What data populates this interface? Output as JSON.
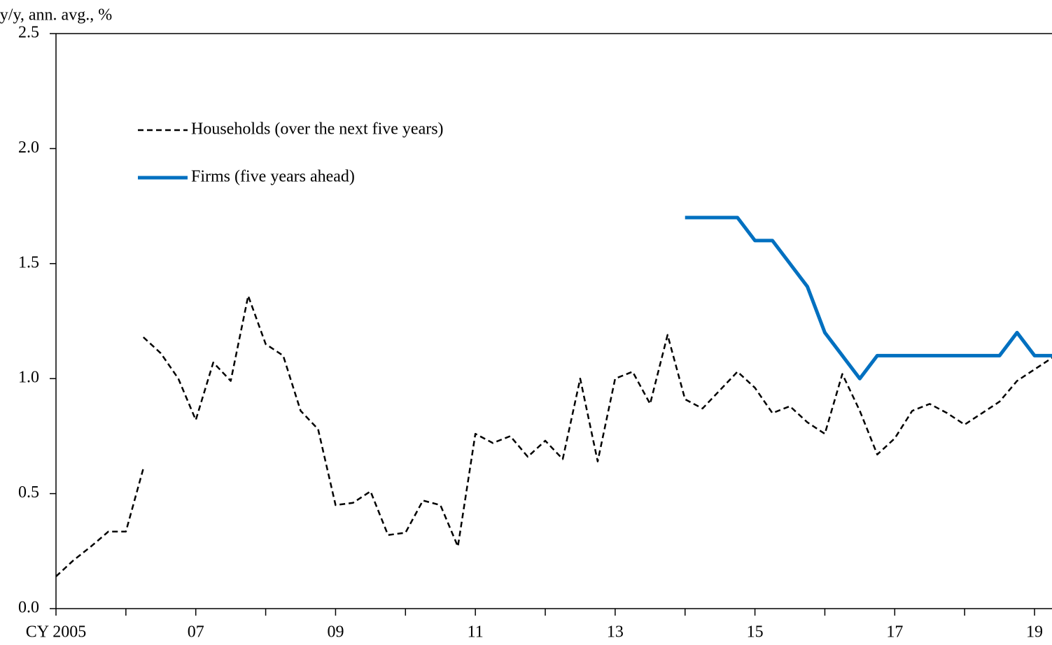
{
  "chart_data": {
    "type": "line",
    "y_axis_label": "y/y, ann. avg., %",
    "xlim": [
      2005,
      2019.25
    ],
    "xticks": [
      {
        "value": 2005,
        "label": "CY 2005"
      },
      {
        "value": 2006,
        "label": null
      },
      {
        "value": 2007,
        "label": "07"
      },
      {
        "value": 2008,
        "label": null
      },
      {
        "value": 2009,
        "label": "09"
      },
      {
        "value": 2010,
        "label": null
      },
      {
        "value": 2011,
        "label": "11"
      },
      {
        "value": 2012,
        "label": null
      },
      {
        "value": 2013,
        "label": "13"
      },
      {
        "value": 2014,
        "label": null
      },
      {
        "value": 2015,
        "label": "15"
      },
      {
        "value": 2016,
        "label": null
      },
      {
        "value": 2017,
        "label": "17"
      },
      {
        "value": 2018,
        "label": null
      },
      {
        "value": 2019,
        "label": "19"
      }
    ],
    "ylim": [
      0,
      2.5
    ],
    "yticks": [
      {
        "value": 0,
        "label": "0.0"
      },
      {
        "value": 0.5,
        "label": "0.5"
      },
      {
        "value": 1,
        "label": "1.0"
      },
      {
        "value": 1.5,
        "label": "1.5"
      },
      {
        "value": 2,
        "label": "2.0"
      },
      {
        "value": 2.5,
        "label": "2.5"
      }
    ],
    "grid": false,
    "series": [
      {
        "name": "Households (over the next five years)",
        "color": "#000000",
        "dash": true,
        "line_width": 2.5,
        "x": [
          2005,
          2005.25,
          2005.5,
          2005.75,
          2006,
          2006.25,
          2006.25,
          2006.25,
          2006.5,
          2006.75,
          2007,
          2007.25,
          2007.5,
          2007.75,
          2008,
          2008.25,
          2008.5,
          2008.75,
          2009,
          2009.25,
          2009.5,
          2009.75,
          2010,
          2010.25,
          2010.5,
          2010.75,
          2011,
          2011.25,
          2011.5,
          2011.75,
          2012,
          2012.25,
          2012.5,
          2012.75,
          2013,
          2013.25,
          2013.5,
          2013.75,
          2014,
          2014.25,
          2014.5,
          2014.75,
          2015,
          2015.25,
          2015.5,
          2015.75,
          2016,
          2016.25,
          2016.5,
          2016.75,
          2017,
          2017.25,
          2017.5,
          2017.75,
          2018,
          2018.25,
          2018.5,
          2018.75,
          2019,
          2019.25
        ],
        "values": [
          0.14,
          0.21,
          0.27,
          0.335,
          0.335,
          0.61,
          null,
          1.18,
          1.11,
          1.0,
          0.82,
          1.07,
          0.99,
          1.36,
          1.15,
          1.1,
          0.86,
          0.78,
          0.45,
          0.46,
          0.51,
          0.32,
          0.33,
          0.47,
          0.45,
          0.27,
          0.76,
          0.72,
          0.75,
          0.66,
          0.73,
          0.65,
          1.0,
          0.64,
          1.0,
          1.03,
          0.89,
          1.19,
          0.91,
          0.87,
          0.95,
          1.03,
          0.96,
          0.85,
          0.88,
          0.81,
          0.76,
          1.02,
          0.86,
          0.67,
          0.74,
          0.86,
          0.89,
          0.85,
          0.8,
          0.85,
          0.9,
          0.99,
          1.04,
          1.09
        ]
      },
      {
        "name": "Firms (five years ahead)",
        "color": "#0070c0",
        "dash": false,
        "line_width": 5,
        "x": [
          2014,
          2014.25,
          2014.5,
          2014.75,
          2015,
          2015.25,
          2015.5,
          2015.75,
          2016,
          2016.25,
          2016.5,
          2016.75,
          2017,
          2017.25,
          2017.5,
          2017.75,
          2018,
          2018.25,
          2018.5,
          2018.75,
          2019,
          2019.25
        ],
        "values": [
          1.7,
          1.7,
          1.7,
          1.7,
          1.6,
          1.6,
          1.5,
          1.4,
          1.2,
          1.1,
          1.0,
          1.1,
          1.1,
          1.1,
          1.1,
          1.1,
          1.1,
          1.1,
          1.1,
          1.2,
          1.1,
          1.1
        ]
      }
    ]
  }
}
